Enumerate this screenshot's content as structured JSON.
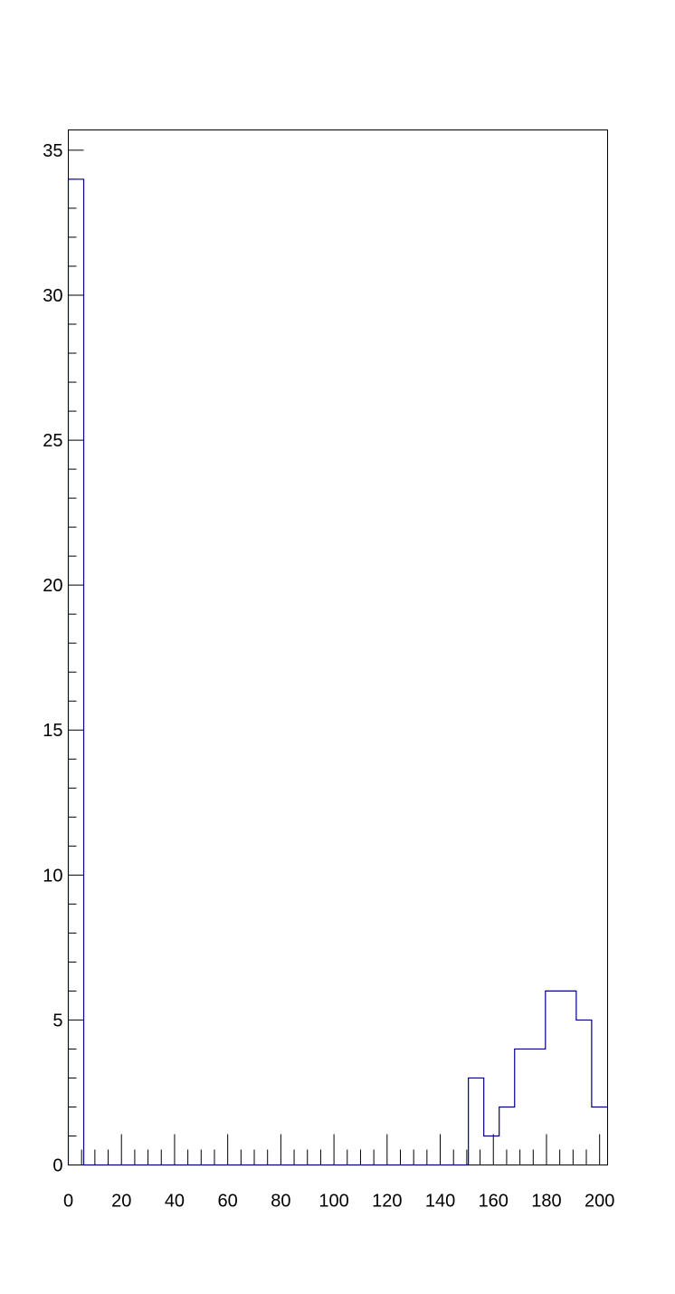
{
  "chart_data": {
    "type": "histogram",
    "title": "",
    "xlabel": "",
    "ylabel": "",
    "xlim": [
      0,
      203
    ],
    "ylim": [
      0,
      35.7
    ],
    "x_ticks": [
      0,
      20,
      40,
      60,
      80,
      100,
      120,
      140,
      160,
      180,
      200
    ],
    "x_tick_labels": [
      "0",
      "20",
      "40",
      "60",
      "80",
      "100",
      "120",
      "140",
      "160",
      "180",
      "200"
    ],
    "y_ticks": [
      0,
      5,
      10,
      15,
      20,
      25,
      30,
      35
    ],
    "y_tick_labels": [
      "0",
      "5",
      "10",
      "15",
      "20",
      "25",
      "30",
      "35"
    ],
    "grid": false,
    "legend": false,
    "line_color": "#000080",
    "bins": [
      {
        "x0": 0,
        "x1": 5.8,
        "count": 34
      },
      {
        "x0": 5.8,
        "x1": 150.6,
        "count": 0
      },
      {
        "x0": 150.6,
        "x1": 156.4,
        "count": 3
      },
      {
        "x0": 156.4,
        "x1": 162.2,
        "count": 1
      },
      {
        "x0": 162.2,
        "x1": 168.0,
        "count": 2
      },
      {
        "x0": 168.0,
        "x1": 179.6,
        "count": 4
      },
      {
        "x0": 179.6,
        "x1": 191.2,
        "count": 6
      },
      {
        "x0": 191.2,
        "x1": 197.0,
        "count": 5
      },
      {
        "x0": 197.0,
        "x1": 203.0,
        "count": 2
      }
    ]
  }
}
